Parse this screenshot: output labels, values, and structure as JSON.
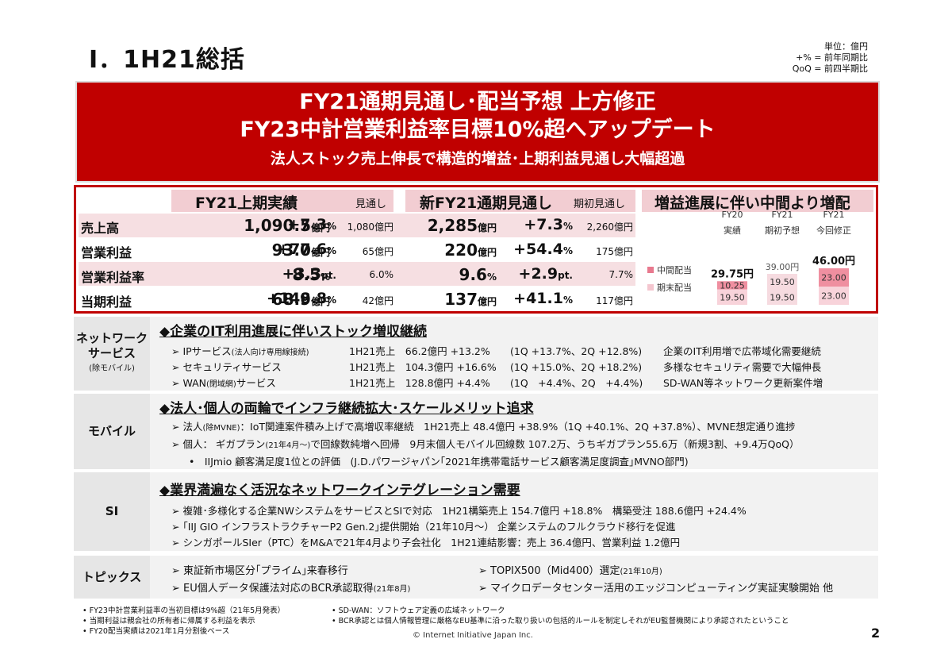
{
  "header": {
    "title": "Ⅰ．1H21総括",
    "units": [
      "単位：億円",
      "+% = 前年同期比",
      "QoQ = 前四半期比"
    ]
  },
  "hero": {
    "line1": "FY21通期見通し･配当予想 上方修正",
    "line2": "FY23中計営業利益率目標10%超へアップデート",
    "line3": "法人ストック売上伸長で構造的増益･上期利益見通し大幅超過"
  },
  "kpi": {
    "h1_title": "FY21上期実績",
    "h1_sub": "見通し",
    "h2_title": "新FY21通期見通し",
    "h2_sub": "期初見通し",
    "h3_title": "増益進展に伴い中間より増配",
    "rows": [
      {
        "label": "売上高",
        "a_val": "1,090.5",
        "a_unit": "億円",
        "a_pct": "+7.3",
        "a_pct_unit": "%",
        "a_ref": "1,080億円",
        "b_val": "2,285",
        "b_unit": "億円",
        "b_pct": "+7.3",
        "b_pct_unit": "%",
        "b_ref": "2,260億円"
      },
      {
        "label": "営業利益",
        "a_val": "93.0",
        "a_unit": "億円",
        "a_pct": "+77.6",
        "a_pct_unit": "%",
        "a_ref": "65億円",
        "b_val": "220",
        "b_unit": "億円",
        "b_pct": "+54.4",
        "b_pct_unit": "%",
        "b_ref": "175億円"
      },
      {
        "label": "営業利益率",
        "a_val": "8.5",
        "a_unit": "%",
        "a_pct": "+3.3",
        "a_pct_unit": "pt.",
        "a_ref": "6.0%",
        "b_val": "9.6",
        "b_unit": "%",
        "b_pct": "+2.9",
        "b_pct_unit": "pt.",
        "b_ref": "7.7%"
      },
      {
        "label": "当期利益",
        "a_val": "68.9",
        "a_unit": "億円",
        "a_pct": "+148.8",
        "a_pct_unit": "%",
        "a_ref": "42億円",
        "b_val": "137",
        "b_unit": "億円",
        "b_pct": "+41.1",
        "b_pct_unit": "%",
        "b_ref": "117億円"
      }
    ]
  },
  "dividend": {
    "legend": [
      {
        "label": "中間配当",
        "color": "#e8798e"
      },
      {
        "label": "期末配当",
        "color": "#f4c6cf"
      }
    ],
    "columns": [
      {
        "head1": "FY20",
        "head2": "実績",
        "total": "29.75円",
        "interim": "10.25",
        "final": "19.50",
        "interim_val": 10.25,
        "final_val": 19.5,
        "interim_color": "#ef8fa0",
        "final_color": "#f8d3da",
        "bold": true
      },
      {
        "head1": "FY21",
        "head2": "期初予想",
        "total": "39.00円",
        "interim": "19.50",
        "final": "19.50",
        "interim_val": 19.5,
        "final_val": 19.5,
        "interim_color": "#f6dbe0",
        "final_color": "#f6dbe0",
        "bold": false
      },
      {
        "head1": "FY21",
        "head2": "今回修正",
        "total": "46.00円",
        "interim": "23.00",
        "final": "23.00",
        "interim_val": 23.0,
        "final_val": 23.0,
        "interim_color": "#ef8fa0",
        "final_color": "#f8d3da",
        "bold": true
      }
    ]
  },
  "network": {
    "label": "ネットワーク\nサービス",
    "label_sub": "(除モバイル)",
    "heading": "◆企業のIT利用進展に伴いストック増収継続",
    "rows": [
      {
        "name_pre": "➢  IPサービス",
        "name_small": "(法人向け専用線接続)",
        "sales": "1H21売上　66.2億円 +13.2%",
        "qoq": "(1Q +13.7%、2Q +12.8%)",
        "note": "企業のIT利用増で広帯域化需要継続"
      },
      {
        "name_pre": "➢  セキュリティサービス",
        "name_small": "",
        "sales": "1H21売上　104.3億円 +16.6%",
        "qoq": "(1Q +15.0%、2Q +18.2%)",
        "note": "多様なセキュリティ需要で大幅伸長"
      },
      {
        "name_pre": "➢  WAN",
        "name_small": "(閉域網)",
        "name_post": "サービス",
        "sales": "1H21売上　128.8億円 +4.4%",
        "qoq": "(1Q　+4.4%、2Q　+4.4%)",
        "note": "SD-WAN等ネットワーク更新案件増"
      }
    ]
  },
  "mobile": {
    "label": "モバイル",
    "heading": "◆法人･個人の両輪でインフラ継続拡大･スケールメリット追求",
    "line1_pre": "➢  法人",
    "line1_small": "(除MVNE)",
    "line1_post": "：IoT関連案件積み上げで高増収率継続　1H21売上 48.4億円 +38.9%（1Q +40.1%、2Q +37.8%）、MVNE想定通り進捗",
    "line2_pre": "➢  個人：  ギガプラン",
    "line2_small": "(21年4月～)",
    "line2_post": "で回線数純増へ回帰　9月末個人モバイル回線数 107.2万、うちギガプラン55.6万（新規3割、+9.4万QoQ）",
    "line3": "•　IIJmio 顧客満足度1位との評価　(J.D.パワージャパン｢2021年携帯電話サービス顧客満足度調査｣MVNO部門)"
  },
  "si": {
    "label": "SI",
    "heading": "◆業界満遍なく活況なネットワークインテグレーション需要",
    "lines": [
      "➢  複雑･多様化する企業NWシステムをサービスとSIで対応　1H21構築売上 154.7億円 +18.8%　構築受注 188.6億円 +24.4%",
      "➢  ｢IIJ GIO インフラストラクチャーP2 Gen.2｣提供開始（21年10月～）  企業システムのフルクラウド移行を促進",
      "➢  シンガポールSIer（PTC）をM&Aで21年4月より子会社化　1H21連結影響：売上 36.4億円、営業利益 1.2億円"
    ]
  },
  "topics": {
    "label": "トピックス",
    "left1": "➢  東証新市場区分｢プライム｣来春移行",
    "left2_pre": "➢  EU個人データ保護法対応のBCR承認取得",
    "left2_small": "(21年8月)",
    "right1_pre": "➢  TOPIX500（Mid400）選定",
    "right1_small": "(21年10月)",
    "right2": "➢  マイクロデータセンター活用のエッジコンピューティング実証実験開始 他"
  },
  "footnotes": {
    "left": [
      "•   FY23中計営業利益率の当初目標は9%超（21年5月発表）",
      "•   当期利益は親会社の所有者に帰属する利益を表示",
      "•   FY20配当実績は2021年1月分割後ベース"
    ],
    "right": [
      "•   SD-WAN：ソフトウェア定義の広域ネットワーク",
      "•   BCR承認とは個人情報管理に厳格なEU基準に沿った取り扱いの包括的ルールを制定しそれがEU監督機関により承認されたということ"
    ]
  },
  "footer": {
    "copyright": "© Internet Initiative Japan Inc.",
    "page": "2"
  }
}
